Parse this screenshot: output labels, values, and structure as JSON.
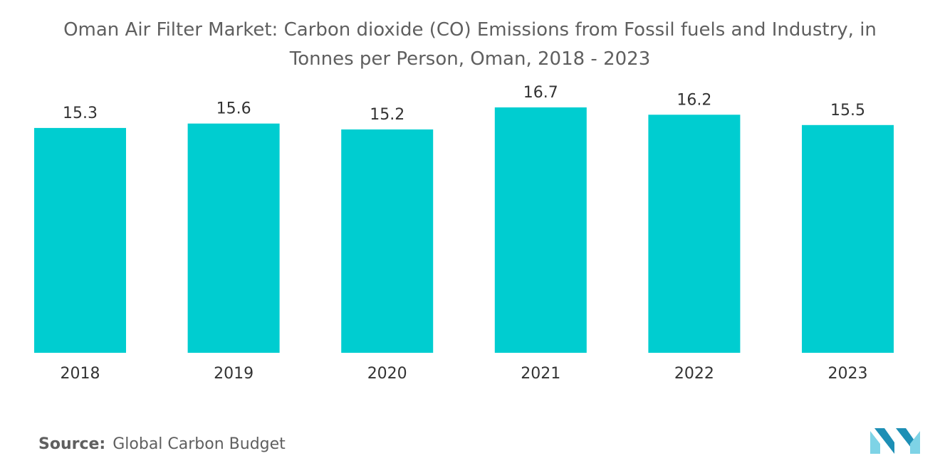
{
  "chart_data": {
    "type": "bar",
    "title_line1": "Oman Air Filter Market: Carbon dioxide (CO) Emissions from Fossil fuels and Industry, in",
    "title_line2": "Tonnes per Person, Oman, 2018 - 2023",
    "categories": [
      "2018",
      "2019",
      "2020",
      "2021",
      "2022",
      "2023"
    ],
    "values": [
      15.3,
      15.6,
      15.2,
      16.7,
      16.2,
      15.5
    ],
    "value_labels": [
      "15.3",
      "15.6",
      "15.2",
      "16.7",
      "16.2",
      "15.5"
    ],
    "xlabel": "",
    "ylabel": "",
    "ylim": [
      0,
      18.2
    ],
    "grid": false,
    "legend": "none"
  },
  "colors": {
    "bar": "#00CDD0",
    "logo_light": "#7ed3e6",
    "logo_dark": "#1d8fb5"
  },
  "source": {
    "key": "Source:",
    "value": "Global Carbon Budget"
  },
  "logo": {
    "icon": "mordor-intelligence-logo-icon"
  }
}
